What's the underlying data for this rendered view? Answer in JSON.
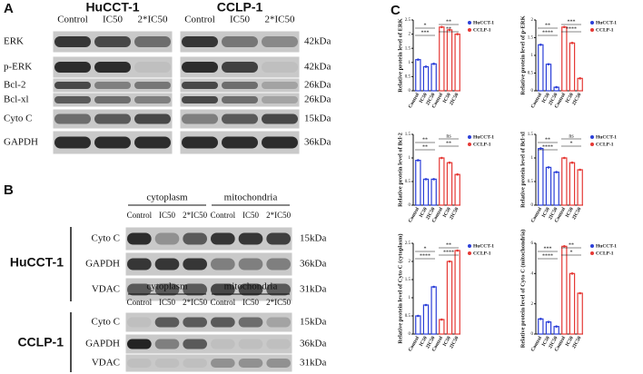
{
  "panel_a": {
    "label": "A",
    "proteins": [
      "ERK",
      "p-ERK",
      "Bcl-2",
      "Bcl-xl",
      "Cyto C",
      "GAPDH"
    ],
    "sizes": [
      "42kDa",
      "42kDa",
      "26kDa",
      "26kDa",
      "15kDa",
      "36kDa"
    ],
    "blots": [
      {
        "cell_line": "HuCCT-1",
        "lanes": [
          "Control",
          "IC50",
          "2*IC50"
        ]
      },
      {
        "cell_line": "CCLP-1",
        "lanes": [
          "Control",
          "IC50",
          "2*IC50"
        ]
      }
    ]
  },
  "panel_b": {
    "label": "B",
    "groups": [
      "cytoplasm",
      "mitochondria"
    ],
    "lanes": [
      "Control",
      "IC50",
      "2*IC50",
      "Control",
      "IC50",
      "2*IC50"
    ],
    "blots": [
      {
        "cell_line": "HuCCT-1",
        "proteins": [
          "Cyto C",
          "GAPDH",
          "VDAC"
        ],
        "sizes": [
          "15kDa",
          "36kDa",
          "31kDa"
        ]
      },
      {
        "cell_line": "CCLP-1",
        "proteins": [
          "Cyto C",
          "GAPDH",
          "VDAC"
        ],
        "sizes": [
          "15kDa",
          "36kDa",
          "31kDa"
        ]
      }
    ]
  },
  "panel_c": {
    "label": "C"
  },
  "chart_data": [
    {
      "type": "bar",
      "y_label": "Relative protein level of ERK",
      "categories": [
        "Control",
        "IC50",
        "2IC50"
      ],
      "series": [
        {
          "name": "HuCCT-1",
          "color": "#2b3fd8",
          "values": [
            1.1,
            0.85,
            0.95
          ]
        },
        {
          "name": "CCLP-1",
          "color": "#e53935",
          "values": [
            2.25,
            2.15,
            2.0
          ]
        }
      ],
      "ylim": [
        0,
        2.5
      ],
      "yticks": [
        0,
        0.5,
        1,
        1.5,
        2,
        2.5
      ],
      "annotations": [
        "***",
        "*",
        "**",
        "**"
      ]
    },
    {
      "type": "bar",
      "y_label": "Relative protein level of p-ERK",
      "categories": [
        "Control",
        "IC50",
        "2IC50"
      ],
      "series": [
        {
          "name": "HuCCT-1",
          "color": "#2b3fd8",
          "values": [
            1.3,
            0.75,
            0.1
          ]
        },
        {
          "name": "CCLP-1",
          "color": "#e53935",
          "values": [
            1.8,
            1.35,
            0.35
          ]
        }
      ],
      "ylim": [
        0,
        2
      ],
      "yticks": [
        0,
        0.5,
        1,
        1.5,
        2
      ],
      "annotations": [
        "****",
        "**",
        "****",
        "***"
      ]
    },
    {
      "type": "bar",
      "y_label": "Relative protein level of Bcl-2",
      "categories": [
        "Control",
        "IC50",
        "2IC50"
      ],
      "series": [
        {
          "name": "HuCCT-1",
          "color": "#2b3fd8",
          "values": [
            0.95,
            0.55,
            0.55
          ]
        },
        {
          "name": "CCLP-1",
          "color": "#e53935",
          "values": [
            1.0,
            0.9,
            0.65
          ]
        }
      ],
      "ylim": [
        0,
        1.5
      ],
      "yticks": [
        0,
        0.5,
        1,
        1.5
      ],
      "annotations": [
        "**",
        "**",
        "**",
        "ns"
      ]
    },
    {
      "type": "bar",
      "y_label": "Relative protein level of Bcl-xl",
      "categories": [
        "Control",
        "IC50",
        "2IC50"
      ],
      "series": [
        {
          "name": "HuCCT-1",
          "color": "#2b3fd8",
          "values": [
            1.2,
            0.8,
            0.7
          ]
        },
        {
          "name": "CCLP-1",
          "color": "#e53935",
          "values": [
            1.0,
            0.9,
            0.75
          ]
        }
      ],
      "ylim": [
        0,
        1.5
      ],
      "yticks": [
        0,
        0.5,
        1,
        1.5
      ],
      "annotations": [
        "****",
        "**",
        "*",
        "ns"
      ]
    },
    {
      "type": "bar",
      "y_label": "Relative protein level of Cyto C (cytoplasm)",
      "categories": [
        "Control",
        "IC50",
        "2IC50"
      ],
      "series": [
        {
          "name": "HuCCT-1",
          "color": "#2b3fd8",
          "values": [
            0.5,
            0.8,
            1.3
          ]
        },
        {
          "name": "CCLP-1",
          "color": "#e53935",
          "values": [
            0.4,
            2.0,
            2.3
          ]
        }
      ],
      "ylim": [
        0,
        2.5
      ],
      "yticks": [
        0,
        0.5,
        1,
        1.5,
        2,
        2.5
      ],
      "annotations": [
        "****",
        "*",
        "****",
        "**"
      ]
    },
    {
      "type": "bar",
      "y_label": "Relative protein level of Cyto C (mitochondria)",
      "categories": [
        "Control",
        "IC50",
        "2IC50"
      ],
      "series": [
        {
          "name": "HuCCT-1",
          "color": "#2b3fd8",
          "values": [
            1.0,
            0.8,
            0.5
          ]
        },
        {
          "name": "CCLP-1",
          "color": "#e53935",
          "values": [
            5.8,
            4.0,
            2.7
          ]
        }
      ],
      "ylim": [
        0,
        6
      ],
      "yticks": [
        0,
        2,
        4,
        6
      ],
      "annotations": [
        "****",
        "***",
        "*",
        "**"
      ]
    }
  ]
}
